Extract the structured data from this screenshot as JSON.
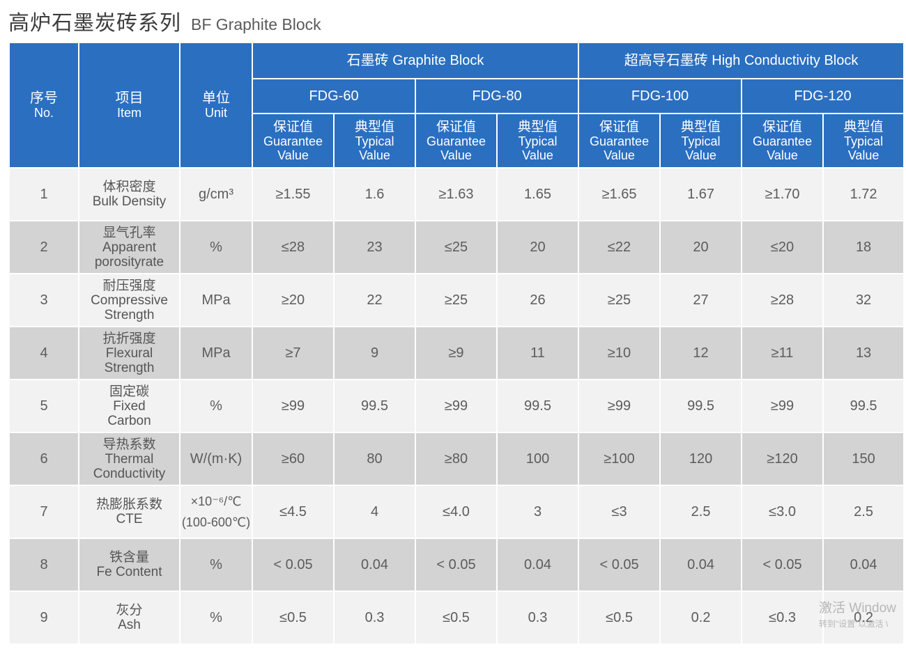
{
  "title": {
    "cn": "高炉石墨炭砖系列",
    "en": "BF Graphite  Block"
  },
  "header": {
    "no": {
      "cn": "序号",
      "en": "No."
    },
    "item": {
      "cn": "项目",
      "en": "Item"
    },
    "unit": {
      "cn": "单位",
      "en": "Unit"
    },
    "group1": "石墨砖 Graphite Block",
    "group2": "超高导石墨砖 High Conductivity Block",
    "grades": [
      "FDG-60",
      "FDG-80",
      "FDG-100",
      "FDG-120"
    ],
    "guarantee": {
      "cn": "保证值",
      "en1": "Guarantee",
      "en2": "Value"
    },
    "typical": {
      "cn": "典型值",
      "en1": "Typical",
      "en2": "Value"
    }
  },
  "rows": [
    {
      "no": "1",
      "item_cn": "体积密度",
      "item_en": [
        "Bulk Density"
      ],
      "unit": "g/cm³",
      "values": [
        "≥1.55",
        "1.6",
        "≥1.63",
        "1.65",
        "≥1.65",
        "1.67",
        "≥1.70",
        "1.72"
      ]
    },
    {
      "no": "2",
      "item_cn": "显气孔率",
      "item_en": [
        "Apparent",
        "porosityrate"
      ],
      "unit": "%",
      "values": [
        "≤28",
        "23",
        "≤25",
        "20",
        "≤22",
        "20",
        "≤20",
        "18"
      ]
    },
    {
      "no": "3",
      "item_cn": "耐压强度",
      "item_en": [
        "Compressive",
        "Strength"
      ],
      "unit": "MPa",
      "values": [
        "≥20",
        "22",
        "≥25",
        "26",
        "≥25",
        "27",
        "≥28",
        "32"
      ]
    },
    {
      "no": "4",
      "item_cn": "抗折强度",
      "item_en": [
        "Flexural",
        "Strength"
      ],
      "unit": "MPa",
      "values": [
        "≥7",
        "9",
        "≥9",
        "11",
        "≥10",
        "12",
        "≥11",
        "13"
      ]
    },
    {
      "no": "5",
      "item_cn": "固定碳",
      "item_en": [
        "Fixed",
        "Carbon"
      ],
      "unit": "%",
      "values": [
        "≥99",
        "99.5",
        "≥99",
        "99.5",
        "≥99",
        "99.5",
        "≥99",
        "99.5"
      ]
    },
    {
      "no": "6",
      "item_cn": "导热系数",
      "item_en": [
        "Thermal",
        "Conductivity"
      ],
      "unit": "W/(m·K)",
      "values": [
        "≥60",
        "80",
        "≥80",
        "100",
        "≥100",
        "120",
        "≥120",
        "150"
      ]
    },
    {
      "no": "7",
      "item_cn": "热膨胀系数",
      "item_en": [
        "CTE"
      ],
      "unit": "×10⁻⁶/℃",
      "unit2": "(100-600℃)",
      "values": [
        "≤4.5",
        "4",
        "≤4.0",
        "3",
        "≤3",
        "2.5",
        "≤3.0",
        "2.5"
      ]
    },
    {
      "no": "8",
      "item_cn": "铁含量",
      "item_en": [
        "Fe Content"
      ],
      "unit": "%",
      "values": [
        "< 0.05",
        "0.04",
        "< 0.05",
        "0.04",
        "< 0.05",
        "0.04",
        "< 0.05",
        "0.04"
      ]
    },
    {
      "no": "9",
      "item_cn": "灰分",
      "item_en": [
        "Ash"
      ],
      "unit": "%",
      "values": [
        "≤0.5",
        "0.3",
        "≤0.5",
        "0.3",
        "≤0.5",
        "0.2",
        "≤0.3",
        "0.2"
      ]
    }
  ],
  "watermark": {
    "line1": "激活 Window",
    "line2": "转到\"设置\"以激活 \\"
  }
}
